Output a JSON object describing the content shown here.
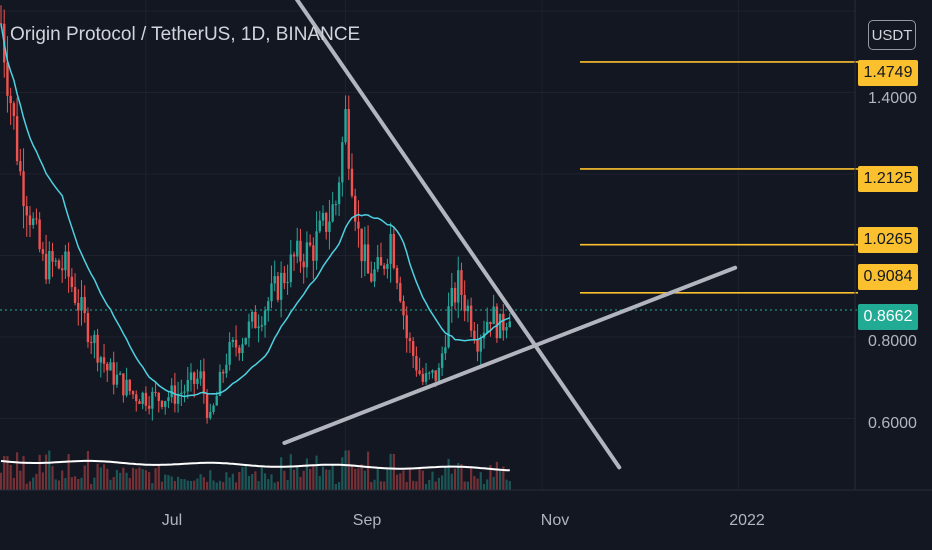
{
  "header": {
    "title": "Origin Protocol / TetherUS, 1D, BINANCE",
    "currency_button": "USDT"
  },
  "colors": {
    "background": "#131722",
    "up": "#26a69a",
    "down": "#ef5350",
    "ma": "#4dd0e1",
    "level": "#fbc02d",
    "trendline": "#b2b5be",
    "current": "#22ab94"
  },
  "chart_data": {
    "type": "candlestick",
    "symbol": "Origin Protocol / TetherUS",
    "interval": "1D",
    "exchange": "BINANCE",
    "y_axis": {
      "ticks": [
        0.6,
        0.8,
        1.4
      ],
      "tick_labels": [
        "0.6000",
        "0.8000",
        "1.4000"
      ],
      "range": [
        0.48,
        1.62
      ]
    },
    "x_axis": {
      "labels": [
        "Jul",
        "Sep",
        "Nov",
        "2022"
      ]
    },
    "current_price": 0.8662,
    "current_price_label": "0.8662",
    "horizontal_levels": [
      {
        "value": 1.4749,
        "label": "1.4749"
      },
      {
        "value": 1.2125,
        "label": "1.2125"
      },
      {
        "value": 1.0265,
        "label": "1.0265"
      },
      {
        "value": 0.9084,
        "label": "0.9084"
      }
    ],
    "trendlines": [
      {
        "name": "descending",
        "from": {
          "date": "2021-08-15",
          "price": 1.65
        },
        "to": {
          "date": "2021-11-25",
          "price": 0.48
        }
      },
      {
        "name": "ascending",
        "from": {
          "date": "2021-08-13",
          "price": 0.54
        },
        "to": {
          "date": "2021-12-31",
          "price": 0.97
        }
      }
    ],
    "close_anchors": [
      [
        "2021-05-17",
        1.57
      ],
      [
        "2021-05-23",
        1.2
      ],
      [
        "2021-05-30",
        0.98
      ],
      [
        "2021-06-06",
        0.97
      ],
      [
        "2021-06-12",
        0.84
      ],
      [
        "2021-06-19",
        0.72
      ],
      [
        "2021-06-27",
        0.66
      ],
      [
        "2021-07-04",
        0.65
      ],
      [
        "2021-07-11",
        0.66
      ],
      [
        "2021-07-18",
        0.7
      ],
      [
        "2021-07-21",
        0.59
      ],
      [
        "2021-07-26",
        0.75
      ],
      [
        "2021-08-02",
        0.82
      ],
      [
        "2021-08-09",
        0.9
      ],
      [
        "2021-08-16",
        0.99
      ],
      [
        "2021-08-22",
        1.02
      ],
      [
        "2021-08-29",
        1.13
      ],
      [
        "2021-09-01",
        1.34
      ],
      [
        "2021-09-03",
        1.2
      ],
      [
        "2021-09-05",
        1.05
      ],
      [
        "2021-09-08",
        0.95
      ],
      [
        "2021-09-12",
        0.96
      ],
      [
        "2021-09-15",
        1.05
      ],
      [
        "2021-09-18",
        0.92
      ],
      [
        "2021-09-20",
        0.8
      ],
      [
        "2021-09-25",
        0.69
      ],
      [
        "2021-09-30",
        0.71
      ],
      [
        "2021-10-03",
        0.86
      ],
      [
        "2021-10-06",
        0.93
      ],
      [
        "2021-10-09",
        0.87
      ],
      [
        "2021-10-12",
        0.8
      ],
      [
        "2021-10-16",
        0.86
      ],
      [
        "2021-10-19",
        0.82
      ],
      [
        "2021-10-22",
        0.87
      ]
    ]
  }
}
